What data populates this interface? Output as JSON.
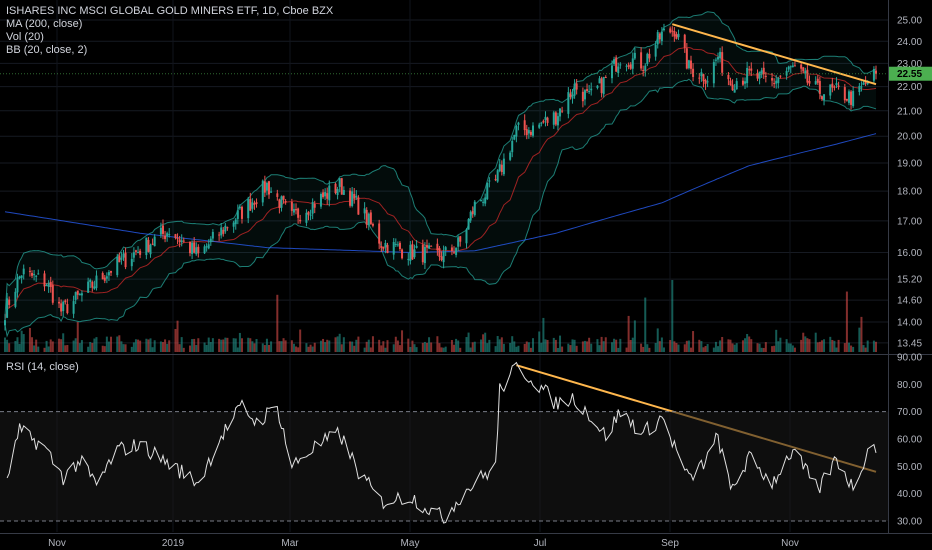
{
  "legend": {
    "title": "ISHARES INC MSCI GLOBAL GOLD MINERS ETF, 1D, Cboe BZX",
    "ma": "MA (200, close)",
    "vol": "Vol (20)",
    "bb": "BB (20, close, 2)",
    "rsi": "RSI (14, close)"
  },
  "last_price_label": "22.55",
  "colors": {
    "up": "#26a69a",
    "down": "#ef5350",
    "ma200": "#2962ff",
    "bb_band": "#26a69a",
    "bb_basis": "#c62828",
    "trendline": "#ffb74d",
    "rsi_line": "#e0e0e0",
    "last_tag": "#4caf50"
  },
  "chart_data": [
    {
      "type": "line",
      "name": "price",
      "title": "ISHARES INC MSCI GLOBAL GOLD MINERS ETF, 1D, Cboe BZX",
      "y_scale": "log",
      "ylim": [
        13.3,
        25.6
      ],
      "y_ticks": [
        "25.00",
        "24.00",
        "23.00",
        "22.00",
        "21.00",
        "20.00",
        "19.00",
        "18.00",
        "17.00",
        "16.00",
        "15.20",
        "14.60",
        "14.00",
        "13.45"
      ],
      "x_ticks": [
        "Nov",
        "2019",
        "Mar",
        "May",
        "Jul",
        "Sep",
        "Nov"
      ],
      "x_range": [
        "2018-10-17",
        "2019-12-10"
      ],
      "close_keypoints": [
        [
          "2018-10-17",
          14.3
        ],
        [
          "2018-10-25",
          15.4
        ],
        [
          "2018-11-06",
          15.1
        ],
        [
          "2018-11-13",
          14.3
        ],
        [
          "2018-11-22",
          14.7
        ],
        [
          "2018-12-07",
          15.5
        ],
        [
          "2018-12-21",
          16.1
        ],
        [
          "2019-01-04",
          16.7
        ],
        [
          "2019-01-18",
          15.9
        ],
        [
          "2019-01-28",
          16.6
        ],
        [
          "2019-02-08",
          17.3
        ],
        [
          "2019-02-20",
          18.2
        ],
        [
          "2019-03-04",
          17.1
        ],
        [
          "2019-03-15",
          17.6
        ],
        [
          "2019-03-27",
          18.2
        ],
        [
          "2019-04-05",
          17.5
        ],
        [
          "2019-04-16",
          16.3
        ],
        [
          "2019-04-30",
          16.0
        ],
        [
          "2019-05-16",
          15.9
        ],
        [
          "2019-05-24",
          16.3
        ],
        [
          "2019-05-31",
          17.5
        ],
        [
          "2019-06-10",
          18.3
        ],
        [
          "2019-06-20",
          20.2
        ],
        [
          "2019-06-28",
          20.3
        ],
        [
          "2019-07-09",
          20.8
        ],
        [
          "2019-07-18",
          22.0
        ],
        [
          "2019-07-25",
          21.5
        ],
        [
          "2019-08-02",
          22.3
        ],
        [
          "2019-08-09",
          23.3
        ],
        [
          "2019-08-20",
          23.0
        ],
        [
          "2019-08-29",
          24.3
        ],
        [
          "2019-09-04",
          24.6
        ],
        [
          "2019-09-11",
          22.8
        ],
        [
          "2019-09-20",
          22.4
        ],
        [
          "2019-09-25",
          23.3
        ],
        [
          "2019-10-01",
          22.2
        ],
        [
          "2019-10-10",
          22.5
        ],
        [
          "2019-10-21",
          22.2
        ],
        [
          "2019-10-31",
          22.8
        ],
        [
          "2019-11-12",
          21.8
        ],
        [
          "2019-11-21",
          21.8
        ],
        [
          "2019-11-29",
          21.5
        ],
        [
          "2019-12-06",
          22.2
        ],
        [
          "2019-12-10",
          22.55
        ]
      ],
      "last_price": 22.55,
      "series": [
        {
          "name": "MA (200, close)",
          "keypoints": [
            [
              "2018-10-17",
              17.3
            ],
            [
              "2018-12-21",
              16.6
            ],
            [
              "2019-02-20",
              16.15
            ],
            [
              "2019-04-30",
              16.0
            ],
            [
              "2019-05-31",
              16.05
            ],
            [
              "2019-07-09",
              16.6
            ],
            [
              "2019-08-29",
              17.6
            ],
            [
              "2019-10-10",
              18.9
            ],
            [
              "2019-11-21",
              19.7
            ],
            [
              "2019-12-10",
              20.1
            ]
          ]
        }
      ],
      "trendline": [
        [
          "2019-09-03",
          24.8
        ],
        [
          "2019-12-10",
          22.1
        ]
      ]
    },
    {
      "type": "bar",
      "name": "volume",
      "title": "Vol (20)",
      "peaks": [
        [
          "2019-02-25",
          "high"
        ],
        [
          "2019-08-21",
          "high"
        ],
        [
          "2019-09-03",
          "highest"
        ],
        [
          "2019-11-26",
          "high"
        ]
      ]
    },
    {
      "type": "line",
      "name": "rsi",
      "title": "RSI (14, close)",
      "ylim": [
        28,
        90
      ],
      "y_ticks": [
        "90.00",
        "80.00",
        "70.00",
        "60.00",
        "50.00",
        "40.00",
        "30.00"
      ],
      "bands": [
        70,
        30
      ],
      "keypoints": [
        [
          "2018-10-18",
          46
        ],
        [
          "2018-10-24",
          63
        ],
        [
          "2018-11-05",
          57
        ],
        [
          "2018-11-14",
          46
        ],
        [
          "2018-11-22",
          52
        ],
        [
          "2018-11-30",
          43
        ],
        [
          "2018-12-10",
          56
        ],
        [
          "2018-12-21",
          58
        ],
        [
          "2019-01-04",
          51
        ],
        [
          "2019-01-18",
          44
        ],
        [
          "2019-01-29",
          61
        ],
        [
          "2019-02-08",
          72
        ],
        [
          "2019-02-15",
          66
        ],
        [
          "2019-02-25",
          72
        ],
        [
          "2019-03-04",
          50
        ],
        [
          "2019-03-15",
          57
        ],
        [
          "2019-03-27",
          62
        ],
        [
          "2019-04-05",
          48
        ],
        [
          "2019-04-16",
          37
        ],
        [
          "2019-04-30",
          39
        ],
        [
          "2019-05-16",
          31
        ],
        [
          "2019-05-24",
          39
        ],
        [
          "2019-05-31",
          44
        ],
        [
          "2019-06-10",
          50
        ],
        [
          "2019-06-12",
          78
        ],
        [
          "2019-06-20",
          86
        ],
        [
          "2019-06-28",
          82
        ],
        [
          "2019-07-09",
          73
        ],
        [
          "2019-07-18",
          75
        ],
        [
          "2019-07-25",
          69
        ],
        [
          "2019-08-02",
          61
        ],
        [
          "2019-08-09",
          70
        ],
        [
          "2019-08-20",
          62
        ],
        [
          "2019-08-29",
          68
        ],
        [
          "2019-09-11",
          45
        ],
        [
          "2019-09-20",
          53
        ],
        [
          "2019-09-25",
          61
        ],
        [
          "2019-10-01",
          41
        ],
        [
          "2019-10-10",
          53
        ],
        [
          "2019-10-21",
          44
        ],
        [
          "2019-10-31",
          56
        ],
        [
          "2019-11-12",
          41
        ],
        [
          "2019-11-21",
          53
        ],
        [
          "2019-11-29",
          42
        ],
        [
          "2019-12-06",
          56
        ],
        [
          "2019-12-10",
          57
        ]
      ],
      "trendline": [
        [
          "2019-06-20",
          87
        ],
        [
          "2019-12-10",
          48
        ]
      ]
    }
  ]
}
